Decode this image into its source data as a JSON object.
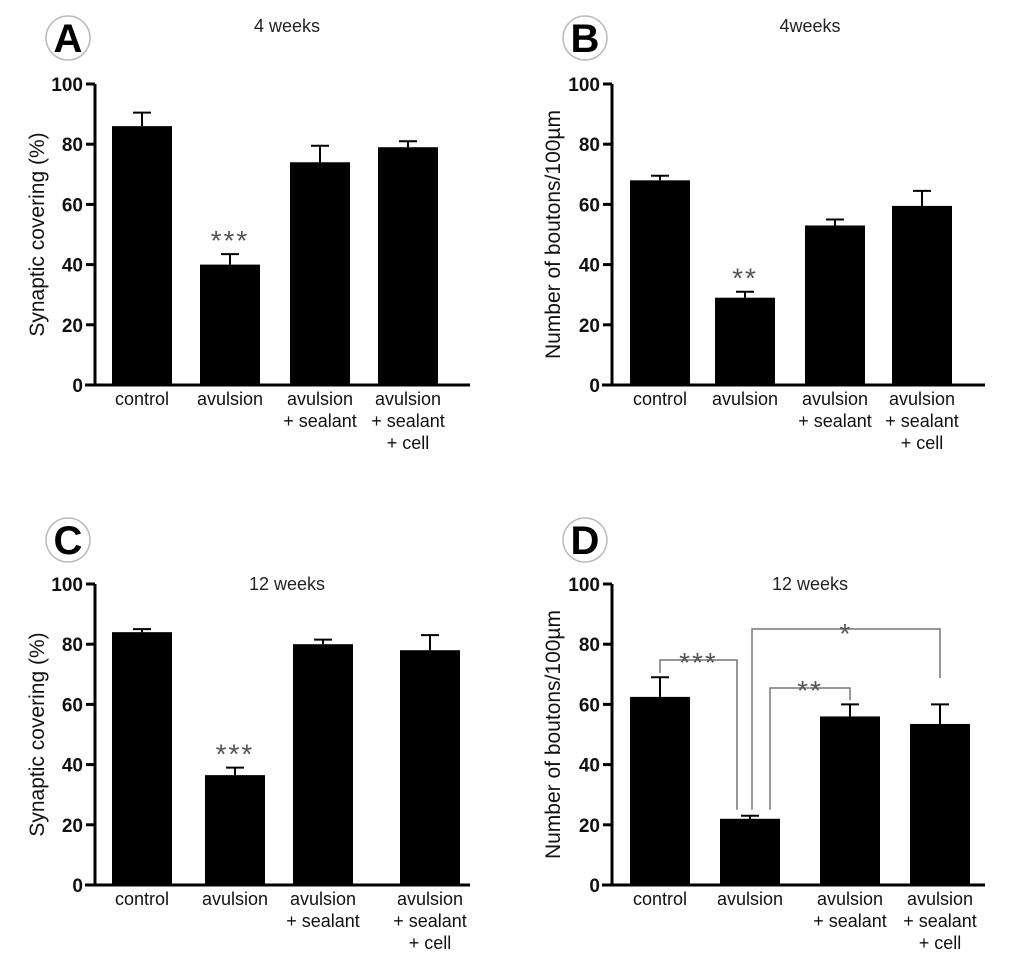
{
  "chart_data": [
    {
      "type": "bar",
      "panel": "A",
      "title": "4 weeks",
      "xlabel": "",
      "ylabel": "Synaptic covering (%)",
      "ylim": [
        0,
        100
      ],
      "yticks": [
        0,
        20,
        40,
        60,
        80,
        100
      ],
      "categories": [
        [
          "control"
        ],
        [
          "avulsion"
        ],
        [
          "avulsion",
          "+ sealant"
        ],
        [
          "avulsion",
          "+ sealant",
          "+ cell"
        ]
      ],
      "values": [
        86,
        40,
        74,
        79
      ],
      "errors": [
        4.5,
        3.5,
        5.5,
        2
      ],
      "significance": [
        "",
        "***",
        "",
        ""
      ],
      "brackets": []
    },
    {
      "type": "bar",
      "panel": "B",
      "title": "4weeks",
      "xlabel": "",
      "ylabel": "Number of boutons/100µm",
      "ylim": [
        0,
        100
      ],
      "yticks": [
        0,
        20,
        40,
        60,
        80,
        100
      ],
      "categories": [
        [
          "control"
        ],
        [
          "avulsion"
        ],
        [
          "avulsion",
          "+ sealant"
        ],
        [
          "avulsion",
          "+ sealant",
          "+ cell"
        ]
      ],
      "values": [
        68,
        29,
        53,
        59.5
      ],
      "errors": [
        1.5,
        2,
        2,
        5
      ],
      "significance": [
        "",
        "**",
        "",
        ""
      ],
      "brackets": []
    },
    {
      "type": "bar",
      "panel": "C",
      "title": "12 weeks",
      "xlabel": "",
      "ylabel": "Synaptic covering (%)",
      "ylim": [
        0,
        100
      ],
      "yticks": [
        0,
        20,
        40,
        60,
        80,
        100
      ],
      "categories": [
        [
          "control"
        ],
        [
          "avulsion"
        ],
        [
          "avulsion",
          "+ sealant"
        ],
        [
          "avulsion",
          "+ sealant",
          "+ cell"
        ]
      ],
      "values": [
        84,
        36.5,
        80,
        78
      ],
      "errors": [
        1,
        2.5,
        1.5,
        5
      ],
      "significance": [
        "",
        "***",
        "",
        ""
      ],
      "brackets": []
    },
    {
      "type": "bar",
      "panel": "D",
      "title": "12 weeks",
      "xlabel": "",
      "ylabel": "Number of boutons/100µm",
      "ylim": [
        0,
        100
      ],
      "yticks": [
        0,
        20,
        40,
        60,
        80,
        100
      ],
      "categories": [
        [
          "control"
        ],
        [
          "avulsion"
        ],
        [
          "avulsion",
          "+ sealant"
        ],
        [
          "avulsion",
          "+ sealant",
          "+ cell"
        ]
      ],
      "values": [
        62.5,
        22,
        56,
        53.5
      ],
      "errors": [
        6.5,
        1,
        4,
        6.5
      ],
      "significance": [
        "",
        "",
        "",
        ""
      ],
      "brackets": [
        {
          "from": 0,
          "to": 1,
          "label": "***"
        },
        {
          "from": 1,
          "to": 2,
          "label": "**"
        },
        {
          "from": 1,
          "to": 3,
          "label": "*"
        }
      ]
    }
  ]
}
